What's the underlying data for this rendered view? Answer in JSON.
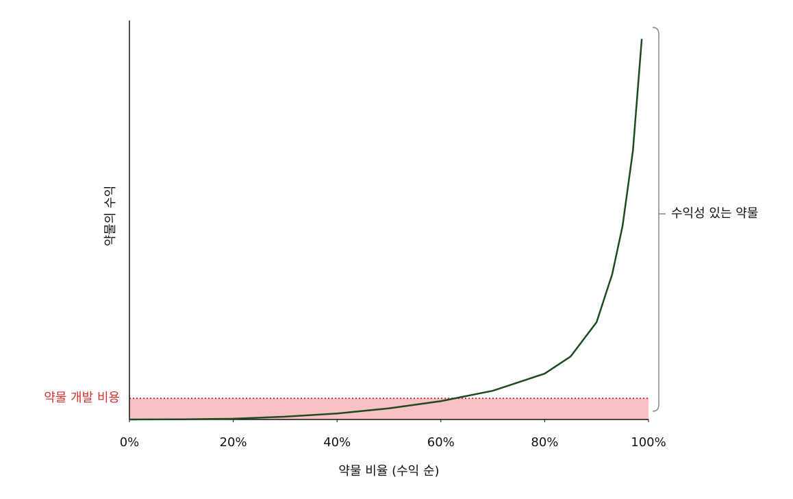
{
  "chart_data": {
    "type": "line",
    "y_label": "약물의 수익",
    "x_label": "약물 비율 (수익 순)",
    "x": [
      0,
      10,
      20,
      30,
      40,
      50,
      60,
      70,
      80,
      85,
      90,
      93,
      95,
      97,
      98.7
    ],
    "series": [
      {
        "color": "#1d4a1f",
        "values": [
          0,
          0.05,
          0.2,
          0.7,
          1.5,
          2.8,
          4.6,
          7.2,
          11.5,
          15.8,
          24.4,
          36.4,
          48.5,
          67.4,
          95.4
        ]
      }
    ],
    "xlim": [
      0,
      100
    ],
    "ylim": [
      0,
      100
    ],
    "xticks": [
      {
        "value": 0,
        "label": "0%"
      },
      {
        "value": 20,
        "label": "20%"
      },
      {
        "value": 40,
        "label": "40%"
      },
      {
        "value": 60,
        "label": "60%"
      },
      {
        "value": 80,
        "label": "80%"
      },
      {
        "value": 100,
        "label": "100%"
      }
    ],
    "threshold": {
      "label": "약물 개발 비용",
      "value": 5.3,
      "color": "#d22f2f",
      "fill": "#f8c1c5"
    },
    "bracket_label": "수익성 있는 약물"
  }
}
